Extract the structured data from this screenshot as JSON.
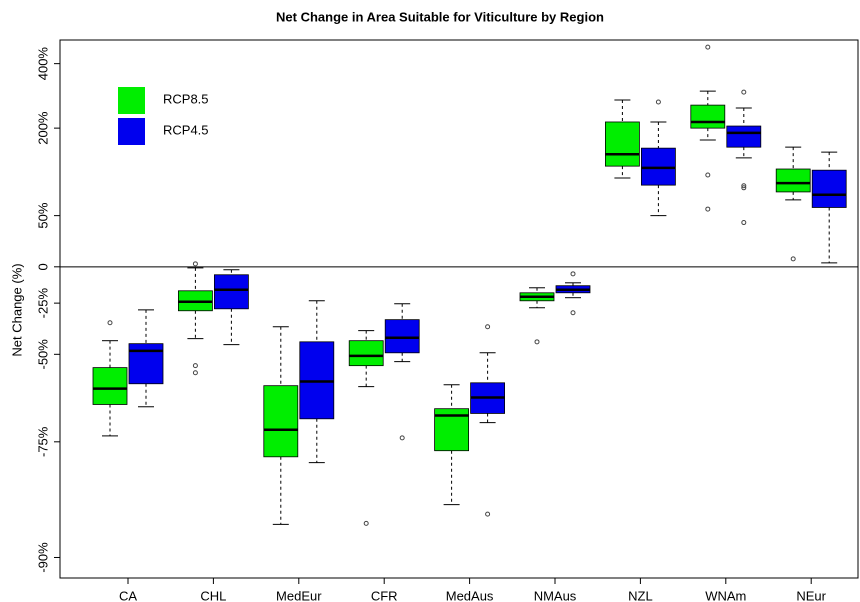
{
  "chart_data": {
    "type": "box",
    "title": "Net Change in Area Suitable for Viticulture by Region",
    "y_label": "Net Change (%)",
    "y_scale": "log1p",
    "reference_line": 0,
    "legend": "top-left",
    "categories": [
      "CA",
      "CHL",
      "MedEur",
      "CFR",
      "MedAus",
      "NMAus",
      "NZL",
      "WNAm",
      "NEur"
    ],
    "ylim": [
      -91.5,
      503
    ],
    "yticks": [
      {
        "value": 400,
        "label": "400%"
      },
      {
        "value": 200,
        "label": "200%"
      },
      {
        "value": 50,
        "label": "50%"
      },
      0,
      {
        "value": -25,
        "label": "-25%"
      },
      {
        "value": -50,
        "label": "-50%"
      },
      {
        "value": -75,
        "label": "-75%"
      },
      {
        "value": -90,
        "label": "-90%"
      }
    ],
    "series": [
      {
        "name": "RCP8.5",
        "color": "#00ee00",
        "whisker_low": [
          -73.8,
          -43.4,
          -87,
          -61.3,
          -84.8,
          -27.7,
          102,
          173,
          70
        ],
        "q1": [
          -66.4,
          -29.4,
          -77.8,
          -54.3,
          -76.7,
          -23.6,
          122,
          200,
          81
        ],
        "median": [
          -61.9,
          -24.2,
          -72.5,
          -50.6,
          -69.2,
          -21.1,
          144,
          215,
          94
        ],
        "q3": [
          -55,
          -17.3,
          -61,
          -44.3,
          -67.5,
          -18.6,
          215,
          260,
          117
        ],
        "whisker_high": [
          -44.3,
          -0.8,
          -37.8,
          -39.7,
          -60.7,
          -15.3,
          275,
          302,
          158
        ],
        "outliers": [
          [
            -35.8
          ],
          [
            2.4,
            -54.3,
            -56.8
          ],
          [],
          [
            -86.9
          ],
          [],
          [
            -44.8
          ],
          [],
          [
            470,
            107,
            58
          ],
          [
            6.5
          ]
        ]
      },
      {
        "name": "RCP4.5",
        "color": "#0000ee",
        "whisker_low": [
          -67,
          -46,
          -78.8,
          -52.8,
          -70.9,
          -21.7,
          50,
          137,
          3.2
        ],
        "q1": [
          -60.4,
          -28.3,
          -70,
          -49.4,
          -68.7,
          -18.6,
          91,
          158,
          60
        ],
        "median": [
          -48.6,
          -16.6,
          -59.7,
          -43,
          -64.5,
          -16.6,
          119,
          189,
          77
        ],
        "q3": [
          -45.6,
          -6.1,
          -44.8,
          -34.2,
          -60.1,
          -13.9,
          156,
          205,
          115
        ],
        "whisker_high": [
          -28.9,
          -2.3,
          -23.6,
          -25.4,
          -49.4,
          -11.9,
          215,
          252,
          148
        ],
        "outliers": [
          [],
          [],
          [],
          [
            -74.2
          ],
          [
            -37.8,
            -85.9
          ],
          [
            -5.4,
            -30.5
          ],
          [
            269
          ],
          [
            299,
            90,
            87,
            42
          ],
          []
        ]
      }
    ]
  }
}
